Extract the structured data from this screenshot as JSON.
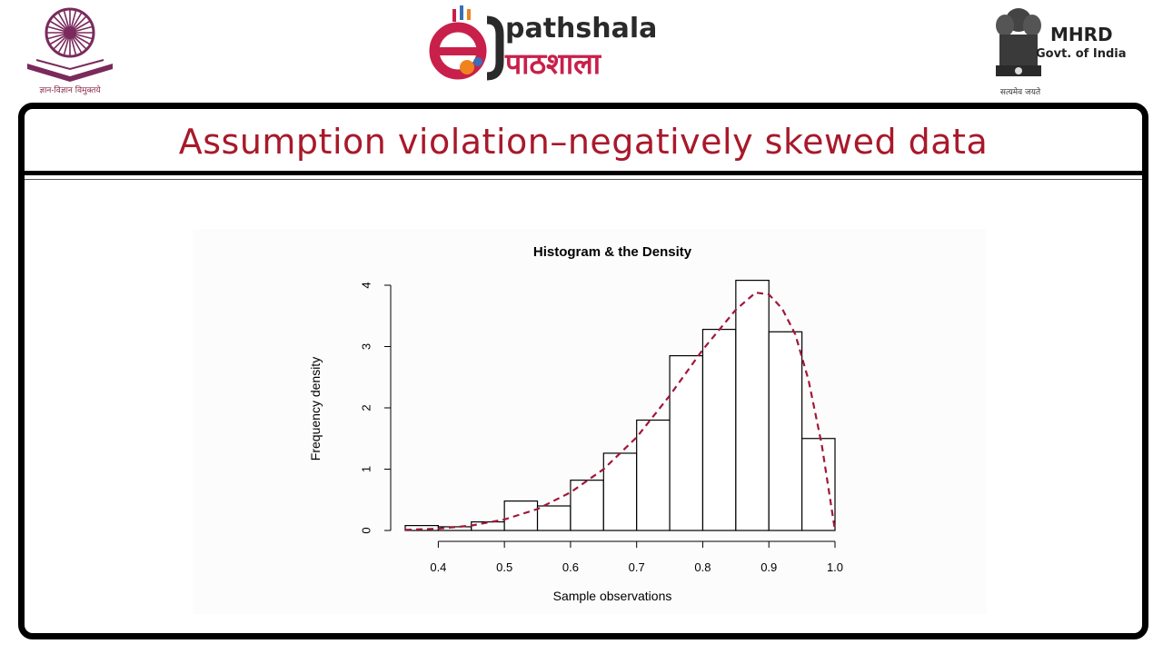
{
  "header": {
    "ugc_caption": "ज्ञान-विज्ञान विमुक्तये",
    "logo_en": "pathshala",
    "logo_hi": "पाठशाला",
    "mhrd_title": "MHRD",
    "mhrd_sub": "Govt. of India",
    "mhrd_motto": "सत्यमेव जयते",
    "colors": {
      "brand_red": "#c8204a",
      "ugc_purple": "#7a2a5c"
    }
  },
  "slide": {
    "title": "Assumption violation–negatively skewed data",
    "title_color": "#a8192a"
  },
  "chart_data": {
    "type": "bar",
    "title": "Histogram & the Density",
    "xlabel": "Sample observations",
    "ylabel": "Frequency density",
    "xlim": [
      0.35,
      1.0
    ],
    "ylim": [
      0,
      4
    ],
    "xticks": [
      "0.4",
      "0.5",
      "0.6",
      "0.7",
      "0.8",
      "0.9",
      "1.0"
    ],
    "yticks": [
      "0",
      "1",
      "2",
      "3",
      "4"
    ],
    "bins": [
      {
        "start": 0.35,
        "end": 0.4,
        "value": 0.08
      },
      {
        "start": 0.4,
        "end": 0.45,
        "value": 0.06
      },
      {
        "start": 0.45,
        "end": 0.5,
        "value": 0.14
      },
      {
        "start": 0.5,
        "end": 0.55,
        "value": 0.48
      },
      {
        "start": 0.55,
        "end": 0.6,
        "value": 0.4
      },
      {
        "start": 0.6,
        "end": 0.65,
        "value": 0.82
      },
      {
        "start": 0.65,
        "end": 0.7,
        "value": 1.26
      },
      {
        "start": 0.7,
        "end": 0.75,
        "value": 1.8
      },
      {
        "start": 0.75,
        "end": 0.8,
        "value": 2.85
      },
      {
        "start": 0.8,
        "end": 0.85,
        "value": 3.28
      },
      {
        "start": 0.85,
        "end": 0.9,
        "value": 4.08
      },
      {
        "start": 0.9,
        "end": 0.95,
        "value": 3.24
      },
      {
        "start": 0.95,
        "end": 1.0,
        "value": 1.5
      }
    ],
    "density_curve": {
      "x": [
        0.35,
        0.4,
        0.45,
        0.5,
        0.55,
        0.6,
        0.65,
        0.7,
        0.75,
        0.8,
        0.85,
        0.88,
        0.9,
        0.92,
        0.94,
        0.96,
        0.98,
        1.0
      ],
      "y": [
        0.01,
        0.03,
        0.08,
        0.18,
        0.35,
        0.62,
        1.0,
        1.52,
        2.2,
        2.95,
        3.6,
        3.88,
        3.85,
        3.62,
        3.2,
        2.45,
        1.4,
        0.0
      ],
      "style": "dashed",
      "color": "#a0173a"
    },
    "bar_fill": "#ffffff",
    "bar_stroke": "#000000",
    "grid": false
  }
}
